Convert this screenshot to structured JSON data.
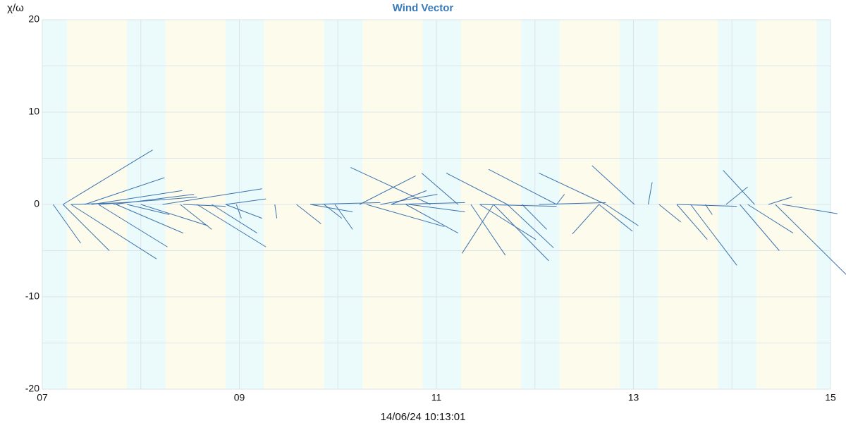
{
  "chart_data": {
    "type": "vector",
    "title": "Wind Vector",
    "y_label": "χ/ω",
    "x_label": "14/06/24 10:13:01",
    "annotation": "*",
    "color": "#3a72ad",
    "day_color": "#fdfcec",
    "night_color": "#ebfbfb",
    "night_bands": [
      [
        7,
        7.25
      ],
      [
        7.86,
        8.25
      ],
      [
        8.86,
        9.25
      ],
      [
        9.86,
        10.25
      ],
      [
        10.86,
        11.25
      ],
      [
        11.86,
        12.25
      ],
      [
        12.86,
        13.25
      ],
      [
        13.86,
        14.25
      ],
      [
        14.86,
        15
      ]
    ],
    "xlim": [
      7,
      15
    ],
    "xticks": [
      {
        "value": 7,
        "label": "07"
      },
      {
        "value": 9,
        "label": "09"
      },
      {
        "value": 11,
        "label": "11"
      },
      {
        "value": 13,
        "label": "13"
      },
      {
        "value": 15,
        "label": "15"
      }
    ],
    "x_minor_ticks": [
      8,
      10,
      12,
      14
    ],
    "ylim": [
      -20,
      20
    ],
    "yticks": [
      -20,
      -10,
      0,
      10,
      20
    ],
    "y_minor_ticks": [
      -15,
      -5,
      5,
      15
    ],
    "grid": true,
    "x": [
      7.11,
      7.21,
      7.21,
      7.29,
      7.43,
      7.5,
      7.57,
      7.72,
      7.75,
      7.86,
      8.0,
      8.22,
      8.4,
      8.57,
      8.72,
      8.86,
      8.97,
      9.36,
      9.58,
      9.72,
      9.86,
      9.97,
      10.94,
      10.22,
      10.29,
      10.43,
      10.54,
      11.22,
      10.72,
      10.69,
      11.72,
      11.58,
      11.35,
      11.44,
      12.22,
      11.58,
      11.72,
      11.87,
      12.72,
      12.22,
      12.65,
      13.01,
      12.65,
      12.72,
      13.15,
      13.26,
      13.44,
      13.58,
      13.73,
      14.23,
      13.94,
      14.08,
      14.16,
      14.37,
      14.44,
      14.51,
      7.29,
      8.43,
      9.72,
      10.54,
      11.44,
      12.04,
      13.44,
      7.57,
      8.86
    ],
    "x_end": [
      7.39,
      8.12,
      7.68,
      8.16,
      8.24,
      8.42,
      8.27,
      8.54,
      8.43,
      8.29,
      8.68,
      9.23,
      8.72,
      9.27,
      9.18,
      9.23,
      9.02,
      9.38,
      9.83,
      10.15,
      10.04,
      10.15,
      10.13,
      10.79,
      11.08,
      11.01,
      10.9,
      10.85,
      11.29,
      11.22,
      11.1,
      11.26,
      11.7,
      12.01,
      11.53,
      12.14,
      12.19,
      12.12,
      12.04,
      12.3,
      12.38,
      12.58,
      12.99,
      13.05,
      13.19,
      13.48,
      13.75,
      14.05,
      13.8,
      13.91,
      14.16,
      14.48,
      14.62,
      14.61,
      15.16,
      15.07,
      7.86,
      8.86,
      10.43,
      11.29,
      12.22,
      12.72,
      14.05,
      8.57,
      9.27
    ],
    "values": [
      -4.2,
      5.9,
      -5.0,
      -5.9,
      2.9,
      1.5,
      -4.6,
      1.1,
      -3.1,
      -1.1,
      -2.3,
      1.7,
      -2.7,
      -4.6,
      -3.1,
      -1.5,
      -1.5,
      -1.5,
      -2.1,
      -0.8,
      -1.5,
      -2.7,
      4.0,
      3.1,
      -2.4,
      1.1,
      1.5,
      3.4,
      -0.8,
      -3.1,
      3.4,
      -5.3,
      -5.5,
      -3.8,
      3.8,
      -6.1,
      -4.7,
      -2.7,
      3.4,
      1.1,
      -3.2,
      4.2,
      -2.9,
      -2.3,
      2.4,
      -1.9,
      -3.8,
      -6.6,
      -1.1,
      3.7,
      1.9,
      -5.0,
      -3.1,
      0.8,
      -7.6,
      -1.0,
      0.2,
      -0.2,
      0.2,
      0.2,
      -0.2,
      0.2,
      -0.2,
      0.8,
      0.6
    ]
  }
}
